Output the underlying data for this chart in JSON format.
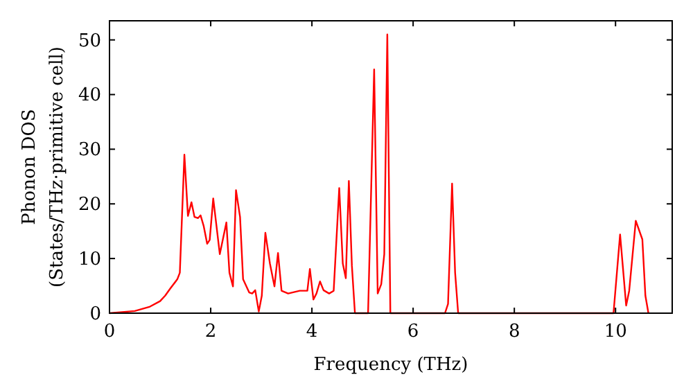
{
  "chart_data": {
    "type": "line",
    "xlabel": "Frequency (THz)",
    "ylabel": "Phonon DOS\n(States/THz·primitive cell)",
    "xlim": [
      0,
      11.12
    ],
    "ylim": [
      0,
      53.5
    ],
    "xticks": [
      0,
      2,
      4,
      6,
      8,
      10
    ],
    "yticks": [
      0,
      10,
      20,
      30,
      40,
      50
    ],
    "grid": false,
    "marker": "none",
    "line_style": "solid",
    "series": [
      {
        "color": "#ff0000",
        "x": [
          0,
          0.5,
          0.8,
          1.0,
          1.1,
          1.2,
          1.34,
          1.39,
          1.48,
          1.55,
          1.62,
          1.68,
          1.75,
          1.8,
          1.86,
          1.93,
          1.98,
          2.05,
          2.18,
          2.31,
          2.37,
          2.44,
          2.5,
          2.58,
          2.64,
          2.76,
          2.82,
          2.88,
          2.95,
          3.01,
          3.08,
          3.17,
          3.26,
          3.33,
          3.4,
          3.53,
          3.76,
          3.91,
          3.96,
          4.03,
          4.09,
          4.16,
          4.23,
          4.34,
          4.43,
          4.54,
          4.61,
          4.67,
          4.73,
          4.79,
          4.85,
          5.11,
          5.23,
          5.3,
          5.37,
          5.43,
          5.49,
          5.55,
          6.63,
          6.69,
          6.77,
          6.83,
          6.89,
          9.96,
          10.09,
          10.21,
          10.27,
          10.4,
          10.53,
          10.59,
          10.65
        ],
        "values": [
          0,
          0.4,
          1.2,
          2.2,
          3.2,
          4.5,
          6.2,
          7.4,
          29,
          17.8,
          20.3,
          17.6,
          17.4,
          17.9,
          16,
          12.7,
          13.4,
          21,
          10.8,
          16.6,
          7.4,
          4.9,
          22.5,
          17.6,
          6.2,
          3.8,
          3.6,
          4.2,
          0.3,
          3.2,
          14.7,
          9.1,
          4.9,
          11,
          4.1,
          3.6,
          4.1,
          4.1,
          8.1,
          2.5,
          3.6,
          5.8,
          4.2,
          3.6,
          4.1,
          22.9,
          9.1,
          6.4,
          24.2,
          8.7,
          0,
          0,
          44.6,
          3.6,
          5.3,
          10.8,
          51,
          0,
          0,
          1.7,
          23.7,
          7.4,
          0,
          0,
          14.4,
          1.4,
          4.1,
          16.9,
          13.5,
          3.2,
          0
        ]
      }
    ]
  }
}
